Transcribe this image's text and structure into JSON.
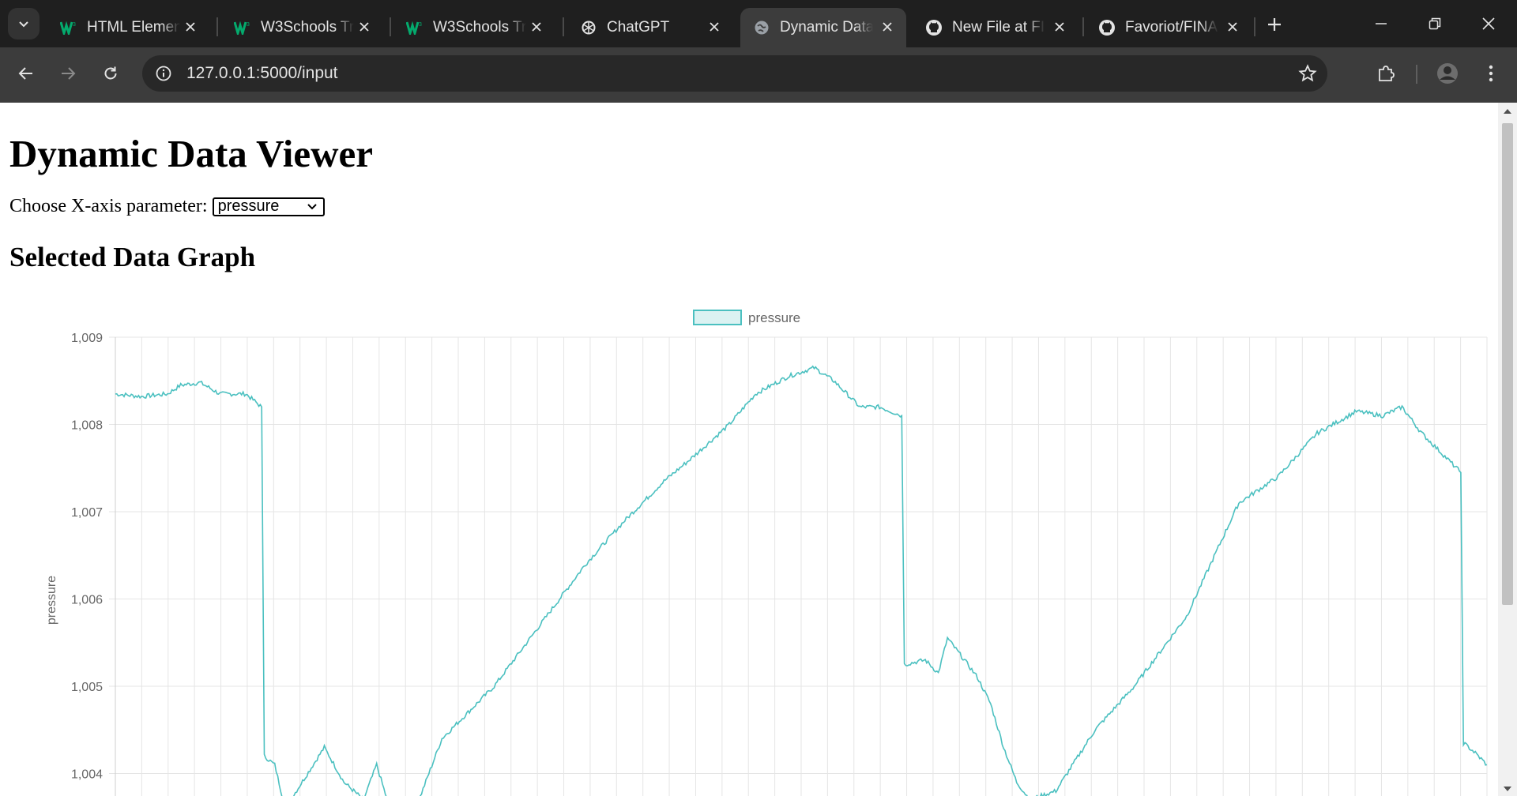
{
  "browser": {
    "tabs": [
      {
        "title": "HTML Elemen",
        "icon": "w3schools-icon"
      },
      {
        "title": "W3Schools Try",
        "icon": "w3schools-icon"
      },
      {
        "title": "W3Schools Try",
        "icon": "w3schools-icon"
      },
      {
        "title": "ChatGPT",
        "icon": "chatgpt-icon"
      },
      {
        "title": "Dynamic Data",
        "icon": "globe-icon",
        "active": true
      },
      {
        "title": "New File at FIN",
        "icon": "github-icon"
      },
      {
        "title": "Favoriot/FINA",
        "icon": "github-icon"
      }
    ],
    "url_host": "127.0.0.1",
    "url_path": ":5000/input",
    "accent": "#3c3c3c"
  },
  "page": {
    "title": "Dynamic Data Viewer",
    "xparam_label": "Choose X-axis parameter:",
    "xparam_value": "pressure",
    "graph_heading": "Selected Data Graph"
  },
  "chart_data": {
    "type": "line",
    "legend": "pressure",
    "ylabel": "pressure",
    "y_ticks": [
      "1,009",
      "1,008",
      "1,007",
      "1,006",
      "1,005",
      "1,004"
    ],
    "ylim": [
      1003.75,
      1009
    ],
    "line_color": "#4bc0c0",
    "grid": true,
    "series": [
      {
        "name": "pressure",
        "points": [
          [
            0,
            1008.35
          ],
          [
            0.02,
            1008.32
          ],
          [
            0.04,
            1008.35
          ],
          [
            0.05,
            1008.45
          ],
          [
            0.065,
            1008.48
          ],
          [
            0.08,
            1008.35
          ],
          [
            0.1,
            1008.35
          ],
          [
            0.112,
            1008.2
          ],
          [
            0.114,
            1004.2
          ],
          [
            0.122,
            1004.1
          ],
          [
            0.13,
            1003.6
          ],
          [
            0.16,
            1004.3
          ],
          [
            0.175,
            1003.9
          ],
          [
            0.19,
            1003.7
          ],
          [
            0.2,
            1004.1
          ],
          [
            0.21,
            1003.6
          ],
          [
            0.23,
            1003.6
          ],
          [
            0.25,
            1004.4
          ],
          [
            0.29,
            1005.0
          ],
          [
            0.33,
            1005.8
          ],
          [
            0.36,
            1006.4
          ],
          [
            0.39,
            1006.9
          ],
          [
            0.42,
            1007.35
          ],
          [
            0.44,
            1007.6
          ],
          [
            0.47,
            1008.0
          ],
          [
            0.49,
            1008.35
          ],
          [
            0.515,
            1008.55
          ],
          [
            0.535,
            1008.65
          ],
          [
            0.55,
            1008.5
          ],
          [
            0.57,
            1008.2
          ],
          [
            0.585,
            1008.2
          ],
          [
            0.602,
            1008.1
          ],
          [
            0.604,
            1005.25
          ],
          [
            0.62,
            1005.3
          ],
          [
            0.63,
            1005.15
          ],
          [
            0.637,
            1005.55
          ],
          [
            0.65,
            1005.3
          ],
          [
            0.66,
            1005.1
          ],
          [
            0.67,
            1004.8
          ],
          [
            0.68,
            1004.3
          ],
          [
            0.69,
            1003.9
          ],
          [
            0.7,
            1003.7
          ],
          [
            0.72,
            1003.8
          ],
          [
            0.75,
            1004.5
          ],
          [
            0.78,
            1005.0
          ],
          [
            0.82,
            1005.8
          ],
          [
            0.86,
            1007.1
          ],
          [
            0.89,
            1007.4
          ],
          [
            0.92,
            1007.9
          ],
          [
            0.95,
            1008.15
          ],
          [
            0.97,
            1008.1
          ],
          [
            0.985,
            1008.2
          ],
          [
            1.0,
            1007.9
          ],
          [
            1.03,
            1007.45
          ],
          [
            1.032,
            1004.35
          ],
          [
            1.04,
            1004.25
          ],
          [
            1.05,
            1004.1
          ]
        ]
      }
    ]
  }
}
